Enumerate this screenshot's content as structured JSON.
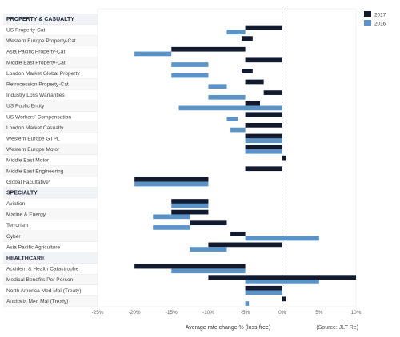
{
  "chart_data": {
    "type": "bar",
    "orientation": "horizontal",
    "xlabel": "Average rate change % (loss-free)",
    "source": "(Source: JLT Re)",
    "xlim": [
      -25,
      10
    ],
    "xticks": [
      -25,
      -20,
      -15,
      -10,
      -5,
      0,
      5,
      10
    ],
    "xtick_labels": [
      "-25%",
      "-20%",
      "-15%",
      "-10%",
      "-5%",
      "0%",
      "5%",
      "10%"
    ],
    "legend_position": "top-right",
    "series": [
      {
        "name": "2017",
        "color": "#111a2e"
      },
      {
        "name": "2016",
        "color": "#5b93c7"
      }
    ],
    "sections": [
      {
        "name": "PROPERTY & CASUALTY",
        "items": [
          {
            "label": "US Property-Cat",
            "v2017": [
              -5,
              0
            ],
            "v2016": [
              -7.5,
              -5
            ]
          },
          {
            "label": "Western Europe Property-Cat",
            "v2017": [
              -5.5,
              -4
            ],
            "v2016": [
              -5,
              -5
            ]
          },
          {
            "label": "Asia Pacific Property-Cat",
            "v2017": [
              -15,
              -5
            ],
            "v2016": [
              -20,
              -15
            ]
          },
          {
            "label": "Middle East Property-Cat",
            "v2017": [
              -5,
              0
            ],
            "v2016": [
              -15,
              -10
            ]
          },
          {
            "label": "London Market Global Property",
            "v2017": [
              -5.5,
              -4
            ],
            "v2016": [
              -15,
              -10
            ]
          },
          {
            "label": "Retrocession Property-Cat",
            "v2017": [
              -5,
              -2.5
            ],
            "v2016": [
              -10,
              -7.5
            ]
          },
          {
            "label": "Industry Loss Warranties",
            "v2017": [
              -2.5,
              0
            ],
            "v2016": [
              -10,
              -5
            ]
          },
          {
            "label": "US Public Entity",
            "v2017": [
              -5,
              -3
            ],
            "v2016": [
              -14,
              0
            ]
          },
          {
            "label": "US Workers' Compensation",
            "v2017": [
              -5,
              0
            ],
            "v2016": [
              -7.5,
              -6
            ]
          },
          {
            "label": "London Market Casualty",
            "v2017": [
              -5,
              0
            ],
            "v2016": [
              -7,
              -5
            ]
          },
          {
            "label": "Western Europe GTPL",
            "v2017": [
              -5,
              0
            ],
            "v2016": [
              -5,
              0
            ]
          },
          {
            "label": "Western Europe Motor",
            "v2017": [
              -5,
              0
            ],
            "v2016": [
              -5,
              0
            ]
          },
          {
            "label": "Middle East Motor",
            "v2017": [
              0,
              0.5
            ],
            "v2016": [
              0,
              0
            ]
          },
          {
            "label": "Middle East Engineering",
            "v2017": [
              -5,
              0
            ],
            "v2016": [
              0,
              0
            ]
          },
          {
            "label": "Global Facultative*",
            "v2017": [
              -20,
              -10
            ],
            "v2016": [
              -20,
              -10
            ]
          }
        ]
      },
      {
        "name": "SPECIALTY",
        "items": [
          {
            "label": "Aviation",
            "v2017": [
              -15,
              -10
            ],
            "v2016": [
              -15,
              -10
            ]
          },
          {
            "label": "Marine & Energy",
            "v2017": [
              -15,
              -10
            ],
            "v2016": [
              -17.5,
              -12.5
            ]
          },
          {
            "label": "Terrorism",
            "v2017": [
              -12.5,
              -7.5
            ],
            "v2016": [
              -17.5,
              -12.5
            ]
          },
          {
            "label": "Cyber",
            "v2017": [
              -7,
              -5
            ],
            "v2016": [
              -5,
              5
            ]
          },
          {
            "label": "Asia Pacific Agriculture",
            "v2017": [
              -10,
              0
            ],
            "v2016": [
              -12.5,
              -7.5
            ]
          }
        ]
      },
      {
        "name": "HEALTHCARE",
        "items": [
          {
            "label": "Accident & Health Catastrophe",
            "v2017": [
              -20,
              -5
            ],
            "v2016": [
              -15,
              -5
            ]
          },
          {
            "label": "Medical Benefits Per Person",
            "v2017": [
              -10,
              10
            ],
            "v2016": [
              -5,
              5
            ]
          },
          {
            "label": "North America Med Mal (Treaty)",
            "v2017": [
              -5,
              0
            ],
            "v2016": [
              -5,
              0
            ]
          },
          {
            "label": "Australia Med Mal (Treaty)",
            "v2017": [
              0,
              0.5
            ],
            "v2016": [
              -5,
              -4.5
            ]
          }
        ]
      }
    ]
  }
}
